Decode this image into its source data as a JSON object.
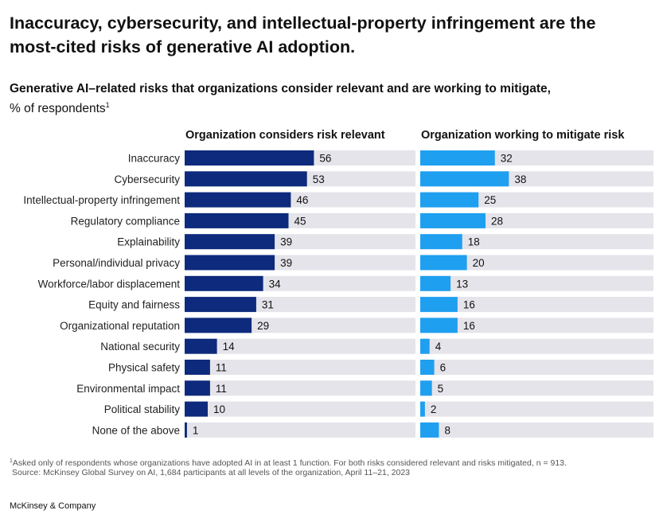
{
  "title": "Inaccuracy, cybersecurity, and intellectual-property infringement are the most-cited risks of generative AI adoption.",
  "subtitle": "Generative AI–related risks that organizations consider relevant and are working to mitigate,",
  "unit_label": "% of respondents",
  "unit_footnote_marker": "1",
  "footnote_marker": "1",
  "footnote": "Asked only of respondents whose organizations have adopted AI in at least 1 function. For both risks considered relevant and risks mitigated, n = 913.",
  "source": "Source: McKinsey Global Survey on AI, 1,684 participants at all levels of the organization, April 11–21, 2023",
  "brand": "McKinsey & Company",
  "chart_data": {
    "type": "bar",
    "orientation": "horizontal",
    "categories": [
      "Inaccuracy",
      "Cybersecurity",
      "Intellectual-property infringement",
      "Regulatory compliance",
      "Explainability",
      "Personal/individual privacy",
      "Workforce/labor displacement",
      "Equity and fairness",
      "Organizational reputation",
      "National security",
      "Physical safety",
      "Environmental impact",
      "Political stability",
      "None of the above"
    ],
    "series": [
      {
        "name": "Organization considers risk relevant",
        "values": [
          56,
          53,
          46,
          45,
          39,
          39,
          34,
          31,
          29,
          14,
          11,
          11,
          10,
          1
        ],
        "color": "#0d2a7c"
      },
      {
        "name": "Organization working to mitigate risk",
        "values": [
          32,
          38,
          25,
          28,
          18,
          20,
          13,
          16,
          16,
          4,
          6,
          5,
          2,
          8
        ],
        "color": "#1f9ff0"
      }
    ],
    "track_color": "#e5e4ea",
    "xlim": [
      0,
      100
    ],
    "data_labels": true
  }
}
